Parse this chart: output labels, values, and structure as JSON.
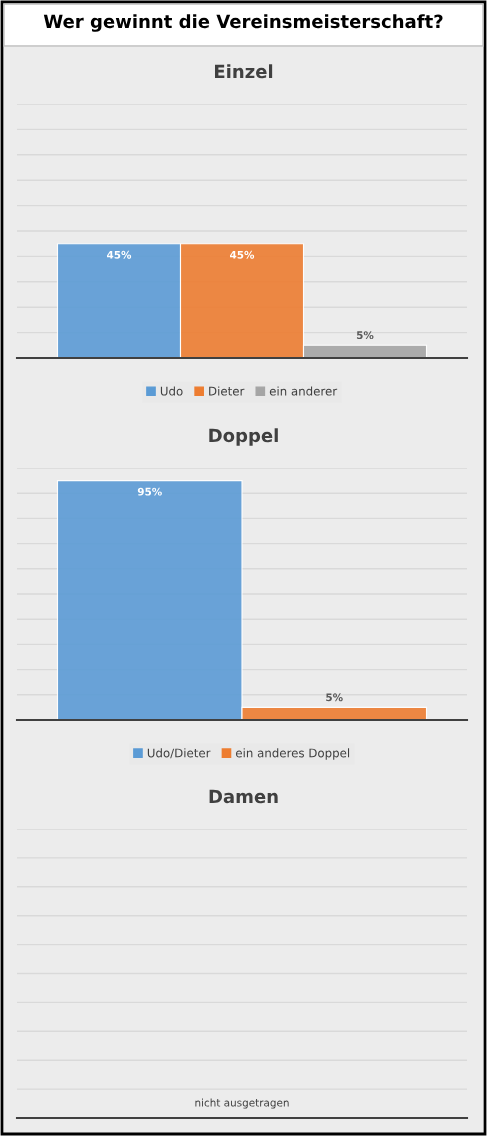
{
  "chart_data": [
    {
      "type": "bar",
      "title": "Wer gewinnt die Vereinsmeisterschaft?",
      "subtitle": "Einzel",
      "categories": [
        null
      ],
      "series": [
        {
          "name": "Udo",
          "color": "#5b9bd5",
          "values": [
            45
          ],
          "value_labels": [
            "45%"
          ]
        },
        {
          "name": "Dieter",
          "color": "#ed7d31",
          "values": [
            45
          ],
          "value_labels": [
            "45%"
          ]
        },
        {
          "name": "ein anderer",
          "color": "#a5a5a5",
          "values": [
            5
          ],
          "value_labels": [
            "5%"
          ]
        }
      ],
      "ylim": [
        0,
        100
      ],
      "yticks": [
        {
          "value": 0,
          "label": null
        },
        {
          "value": 10,
          "label": null
        },
        {
          "value": 20,
          "label": null
        },
        {
          "value": 30,
          "label": null
        },
        {
          "value": 40,
          "label": null
        },
        {
          "value": 50,
          "label": null
        },
        {
          "value": 60,
          "label": null
        },
        {
          "value": 70,
          "label": null
        },
        {
          "value": 80,
          "label": null
        },
        {
          "value": 90,
          "label": null
        },
        {
          "value": 100,
          "label": null
        }
      ],
      "grid": "y",
      "legend": "bottom"
    },
    {
      "type": "bar",
      "title": "Doppel",
      "categories": [
        null
      ],
      "series": [
        {
          "name": "Udo/Dieter",
          "color": "#5b9bd5",
          "values": [
            95
          ],
          "value_labels": [
            "95%"
          ]
        },
        {
          "name": "ein anderes Doppel",
          "color": "#ed7d31",
          "values": [
            5
          ],
          "value_labels": [
            "5%"
          ]
        }
      ],
      "ylim": [
        0,
        100
      ],
      "yticks": [
        {
          "value": 0,
          "label": null
        },
        {
          "value": 10,
          "label": null
        },
        {
          "value": 20,
          "label": null
        },
        {
          "value": 30,
          "label": null
        },
        {
          "value": 40,
          "label": null
        },
        {
          "value": 50,
          "label": null
        },
        {
          "value": 60,
          "label": null
        },
        {
          "value": 70,
          "label": null
        },
        {
          "value": 80,
          "label": null
        },
        {
          "value": 90,
          "label": null
        },
        {
          "value": 100,
          "label": null
        }
      ],
      "grid": "y",
      "legend": "bottom"
    },
    {
      "type": "other",
      "title": "Damen",
      "annotations": [
        "nicht ausgetragen"
      ]
    }
  ]
}
